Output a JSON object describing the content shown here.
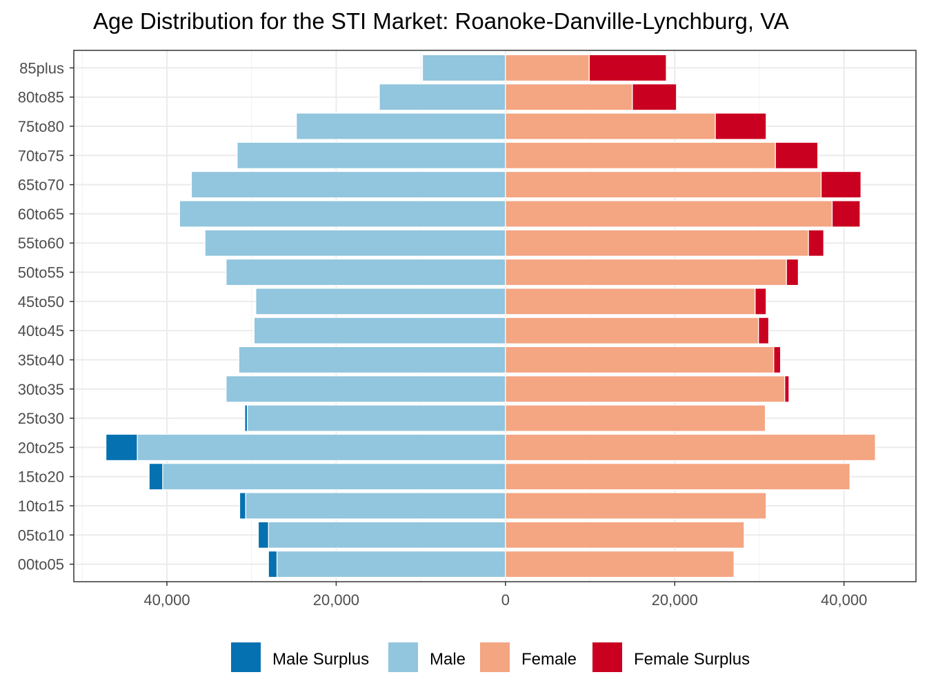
{
  "chart_data": {
    "type": "bar",
    "orientation": "horizontal",
    "title": "Age Distribution for the STI Market: Roanoke-Danville-Lynchburg, VA",
    "xlabel": "",
    "ylabel": "",
    "categories": [
      "00to05",
      "05to10",
      "10to15",
      "15to20",
      "20to25",
      "25to30",
      "30to35",
      "35to40",
      "40to45",
      "45to50",
      "50to55",
      "55to60",
      "60to65",
      "65to70",
      "70to75",
      "75to80",
      "80to85",
      "85plus"
    ],
    "xlim": [
      -51000,
      48500
    ],
    "x_ticks": [
      -40000,
      -20000,
      0,
      20000,
      40000
    ],
    "x_tick_labels": [
      "40,000",
      "20,000",
      "0",
      "20,000",
      "40,000"
    ],
    "grid": true,
    "legend_position": "bottom",
    "series": [
      {
        "name": "Male Surplus",
        "color": "#0571b0",
        "side": "left",
        "values": [
          1000,
          1200,
          700,
          1600,
          3700,
          300,
          0,
          0,
          0,
          0,
          0,
          0,
          0,
          0,
          0,
          0,
          0,
          0
        ]
      },
      {
        "name": "Male",
        "color": "#92c5de",
        "side": "left",
        "values": [
          27000,
          28000,
          30700,
          40500,
          43500,
          30500,
          33000,
          31500,
          29700,
          29500,
          33000,
          35500,
          38500,
          37100,
          31700,
          24700,
          14900,
          9800
        ]
      },
      {
        "name": "Female",
        "color": "#f4a582",
        "side": "right",
        "values": [
          27000,
          28200,
          30800,
          40700,
          43700,
          30700,
          33000,
          31700,
          29900,
          29500,
          33200,
          35800,
          38600,
          37300,
          31900,
          24800,
          15000,
          9900
        ]
      },
      {
        "name": "Female Surplus",
        "color": "#ca0020",
        "side": "right",
        "values": [
          0,
          0,
          0,
          0,
          0,
          0,
          500,
          800,
          1200,
          1300,
          1400,
          1800,
          3300,
          4700,
          5000,
          6000,
          5200,
          9100
        ]
      }
    ]
  }
}
